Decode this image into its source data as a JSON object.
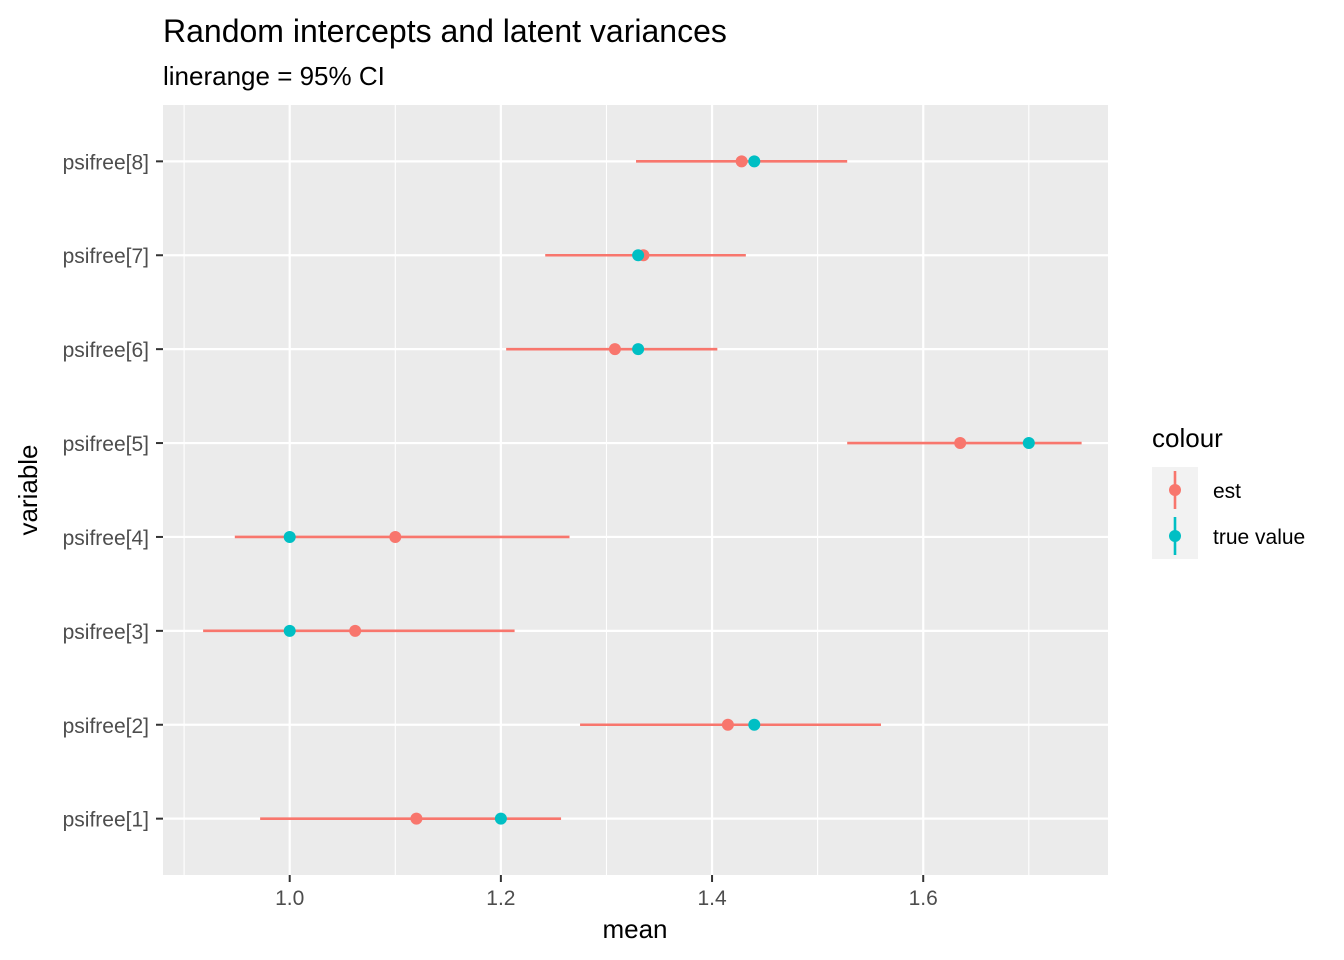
{
  "chart_data": {
    "type": "scatter",
    "title": "Random intercepts and latent variances",
    "subtitle": "linerange = 95% CI",
    "xlabel": "mean",
    "ylabel": "variable",
    "xlim": [
      0.88,
      1.775
    ],
    "x_ticks": [
      1.0,
      1.2,
      1.4,
      1.6
    ],
    "x_tick_labels": [
      "1.0",
      "1.2",
      "1.4",
      "1.6"
    ],
    "categories": [
      "psifree[1]",
      "psifree[2]",
      "psifree[3]",
      "psifree[4]",
      "psifree[5]",
      "psifree[6]",
      "psifree[7]",
      "psifree[8]"
    ],
    "grid": true,
    "legend_position": "right",
    "legend_title": "colour",
    "series": [
      {
        "name": "est",
        "color": "#F8766D",
        "values": [
          1.12,
          1.415,
          1.062,
          1.1,
          1.635,
          1.308,
          1.335,
          1.428
        ],
        "lower": [
          0.972,
          1.275,
          0.918,
          0.948,
          1.528,
          1.205,
          1.242,
          1.328
        ],
        "upper": [
          1.257,
          1.56,
          1.213,
          1.265,
          1.75,
          1.405,
          1.432,
          1.528
        ]
      },
      {
        "name": "true value",
        "color": "#00BFC4",
        "values": [
          1.2,
          1.44,
          1.0,
          1.0,
          1.7,
          1.33,
          1.33,
          1.44
        ]
      }
    ]
  }
}
